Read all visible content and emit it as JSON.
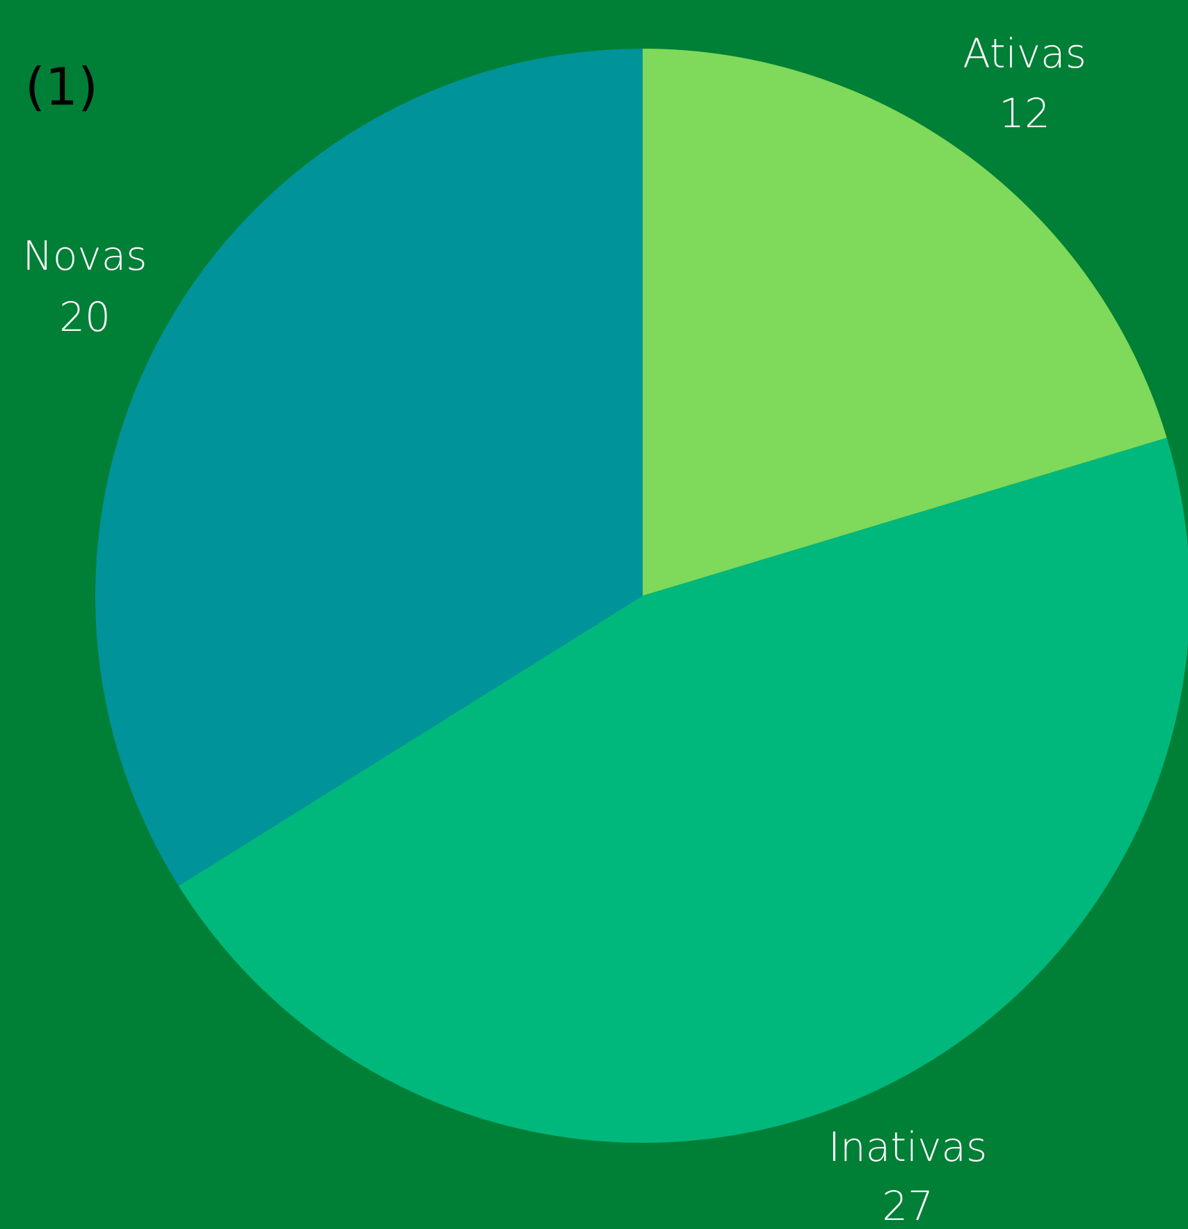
{
  "chart_data": {
    "type": "pie",
    "title": "(1)",
    "categories": [
      "Ativas",
      "Inativas",
      "Novas"
    ],
    "values": [
      12,
      27,
      20
    ],
    "colors": [
      "#7fd95a",
      "#00b87c",
      "#00939a"
    ],
    "background": "#007f36"
  }
}
